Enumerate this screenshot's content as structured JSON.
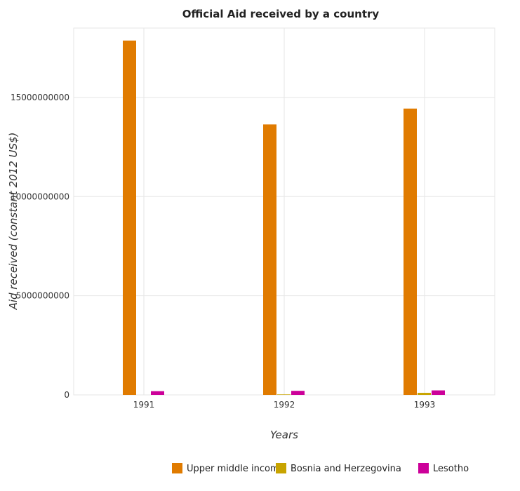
{
  "chart_data": {
    "type": "bar",
    "title": "Official Aid received by a country",
    "xlabel": "Years",
    "ylabel": "Aid received (constant 2012 US$)",
    "categories": [
      "1991",
      "1992",
      "1993"
    ],
    "series": [
      {
        "name": "Upper middle income",
        "color": "#e07b00",
        "values": [
          17870000000,
          13640000000,
          14440000000
        ]
      },
      {
        "name": "Bosnia and Herzegovina",
        "color": "#c8a400",
        "values": [
          0,
          25000000,
          105000000
        ]
      },
      {
        "name": "Lesotho",
        "color": "#cc0099",
        "values": [
          188000000,
          205000000,
          228000000
        ]
      }
    ],
    "yticks": [
      0,
      5000000000,
      10000000000,
      15000000000
    ],
    "ytick_labels": [
      "0",
      "5000000000",
      "10000000000",
      "15000000000"
    ],
    "ylim": [
      0,
      18500000000
    ],
    "grid": true,
    "legend_position": "bottom-right"
  }
}
